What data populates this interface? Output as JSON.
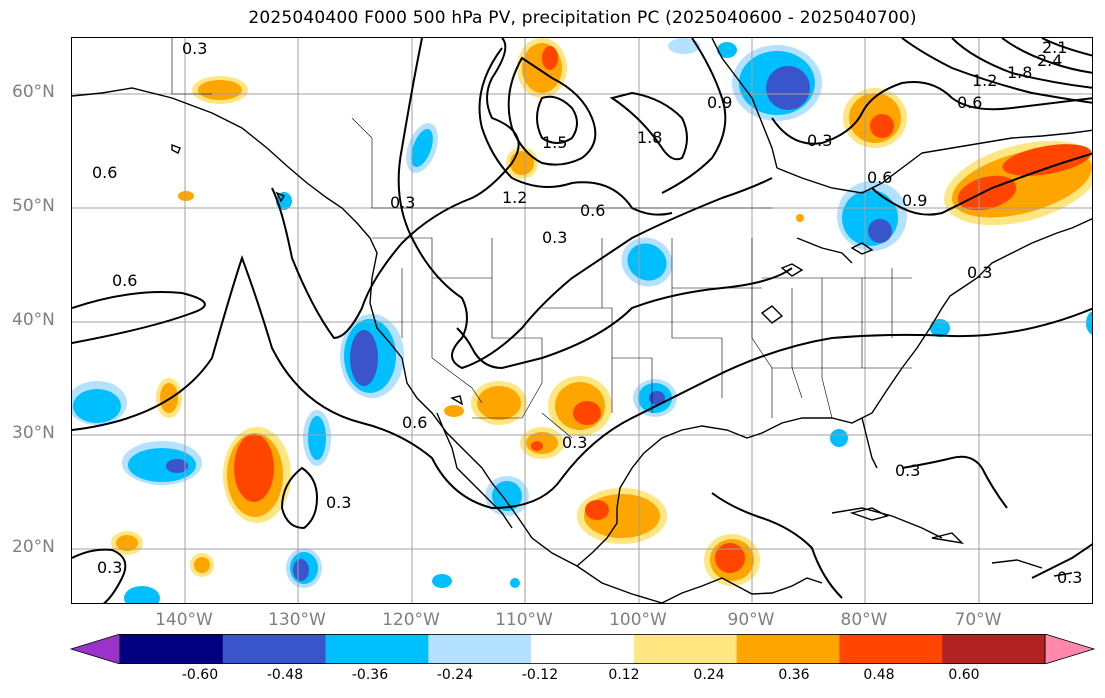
{
  "title": "2025040400 F000 500 hPa PV, precipitation PC (2025040600 - 2025040700)",
  "lat_labels": [
    "60°N",
    "50°N",
    "40°N",
    "30°N",
    "20°N"
  ],
  "lon_labels": [
    "140°W",
    "130°W",
    "120°W",
    "110°W",
    "100°W",
    "90°W",
    "80°W",
    "70°W"
  ],
  "contour_labels": [
    "0.3",
    "0.6",
    "0.9",
    "1.2",
    "1.5",
    "1.8",
    "2.1",
    "2.4"
  ],
  "colorbar": {
    "ticks": [
      "-0.60",
      "-0.48",
      "-0.36",
      "-0.24",
      "-0.12",
      "0.12",
      "0.24",
      "0.36",
      "0.48",
      "0.60"
    ],
    "colors": [
      "#9933cc",
      "#000080",
      "#3a55cc",
      "#00bfff",
      "#b4e1ff",
      "#ffffff",
      "#ffe680",
      "#ffa500",
      "#ff4500",
      "#b22222",
      "#ff88aa"
    ]
  },
  "colors": {
    "neg_strong": "#3a55cc",
    "neg_mid": "#00bfff",
    "neg_weak": "#b4e1ff",
    "pos_weak": "#ffe680",
    "pos_mid": "#ffa500",
    "pos_strong": "#ff4500",
    "grid": "#a0a0a0"
  }
}
